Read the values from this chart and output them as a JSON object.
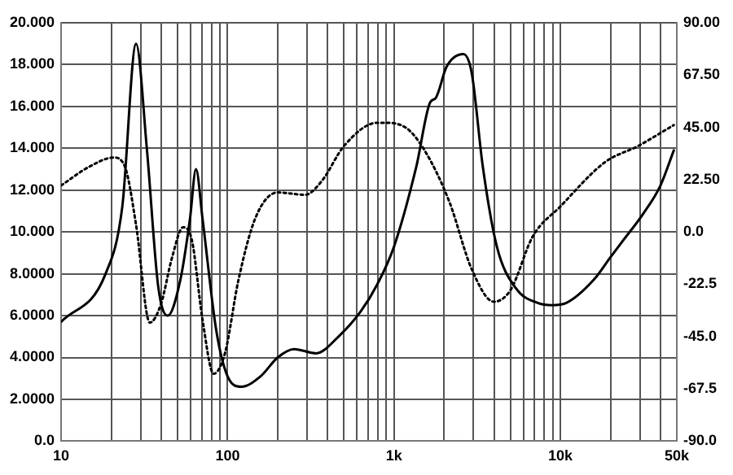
{
  "chart_data": {
    "type": "line",
    "xlim": [
      10,
      50000
    ],
    "ylim": [
      0,
      20
    ],
    "y2lim": [
      -90,
      90
    ],
    "log": "x",
    "grid": true,
    "legend": false,
    "marker": "none",
    "xticks": [
      10,
      {
        "value": 20,
        "label": null
      },
      {
        "value": 30,
        "label": null
      },
      {
        "value": 40,
        "label": null
      },
      {
        "value": 50,
        "label": null
      },
      {
        "value": 60,
        "label": null
      },
      {
        "value": 70,
        "label": null
      },
      {
        "value": 80,
        "label": null
      },
      {
        "value": 90,
        "label": null
      },
      100,
      {
        "value": 200,
        "label": null
      },
      {
        "value": 300,
        "label": null
      },
      {
        "value": 400,
        "label": null
      },
      {
        "value": 500,
        "label": null
      },
      {
        "value": 600,
        "label": null
      },
      {
        "value": 700,
        "label": null
      },
      {
        "value": 800,
        "label": null
      },
      {
        "value": 900,
        "label": null
      },
      {
        "value": 1000,
        "label": "1k"
      },
      {
        "value": 2000,
        "label": null
      },
      {
        "value": 3000,
        "label": null
      },
      {
        "value": 4000,
        "label": null
      },
      {
        "value": 5000,
        "label": null
      },
      {
        "value": 6000,
        "label": null
      },
      {
        "value": 7000,
        "label": null
      },
      {
        "value": 8000,
        "label": null
      },
      {
        "value": 9000,
        "label": null
      },
      {
        "value": 10000,
        "label": "10k"
      },
      {
        "value": 20000,
        "label": null
      },
      {
        "value": 30000,
        "label": null
      },
      {
        "value": 40000,
        "label": null
      },
      {
        "value": 50000,
        "label": "50k"
      }
    ],
    "yticks": [
      {
        "value": 0,
        "label": "0.0"
      },
      {
        "value": 2,
        "label": "2.0000"
      },
      {
        "value": 4,
        "label": "4.0000"
      },
      {
        "value": 6,
        "label": "6.0000"
      },
      {
        "value": 8,
        "label": "8.0000"
      },
      {
        "value": 10,
        "label": "10.000"
      },
      {
        "value": 12,
        "label": "12.000"
      },
      {
        "value": 14,
        "label": "14.000"
      },
      {
        "value": 16,
        "label": "16.000"
      },
      {
        "value": 18,
        "label": "18.000"
      },
      {
        "value": 20,
        "label": "20.000"
      }
    ],
    "y2ticks": [
      {
        "value": -90,
        "label": "-90.0"
      },
      {
        "value": -67.5,
        "label": "-67.5"
      },
      {
        "value": -45,
        "label": "-45.0"
      },
      {
        "value": -22.5,
        "label": "-22.5"
      },
      {
        "value": 0,
        "label": "0.0"
      },
      {
        "value": 22.5,
        "label": "22.50"
      },
      {
        "value": 45,
        "label": "45.00"
      },
      {
        "value": 67.5,
        "label": "67.50"
      },
      {
        "value": 90,
        "label": "90.00"
      }
    ],
    "series": [
      {
        "color": "#000000",
        "line_style": "solid",
        "x": [
          10,
          18.5,
          23.3,
          28.2,
          32.8,
          38.3,
          43.7,
          52,
          59.4,
          64.6,
          70.8,
          85.5,
          100,
          121,
          158,
          200,
          251,
          340,
          464,
          631,
          794,
          1000,
          1360,
          1650,
          1780,
          2070,
          2610,
          2930,
          3420,
          4150,
          5410,
          7350,
          8910,
          10800,
          15800,
          20000,
          23300,
          31600,
          39800,
          48000
        ],
        "values": [
          5.7,
          8,
          11.2,
          19,
          13.9,
          7.4,
          6,
          7.7,
          10.6,
          13,
          10.6,
          5.3,
          3.1,
          2.6,
          3.1,
          4,
          4.4,
          4.2,
          5,
          6.2,
          7.5,
          9.3,
          13.1,
          16.2,
          16.4,
          17.9,
          18.5,
          17.6,
          13.1,
          9.3,
          7.3,
          6.6,
          6.5,
          6.6,
          7.7,
          8.8,
          9.5,
          10.9,
          12.2,
          13.9
        ]
      },
      {
        "color": "#000000",
        "line_style": "dotted",
        "axis": "y2",
        "x": [
          10,
          14.7,
          20.7,
          24.2,
          28.2,
          34.1,
          39.8,
          46.4,
          54,
          60.8,
          70.8,
          82.5,
          96.6,
          116,
          147,
          200,
          293,
          369,
          501,
          794,
          860,
          1170,
          1530,
          2150,
          2930,
          3980,
          5010,
          6810,
          10000,
          18500,
          29300,
          48000
        ],
        "values": [
          20,
          28,
          32,
          28,
          3,
          -39,
          -31,
          -11,
          2,
          -3,
          -38,
          -61,
          -52,
          -21,
          6,
          17,
          16,
          22,
          37,
          47,
          47,
          45,
          35,
          13,
          -16,
          -30,
          -25,
          -2,
          11,
          30,
          37,
          46
        ]
      }
    ]
  }
}
